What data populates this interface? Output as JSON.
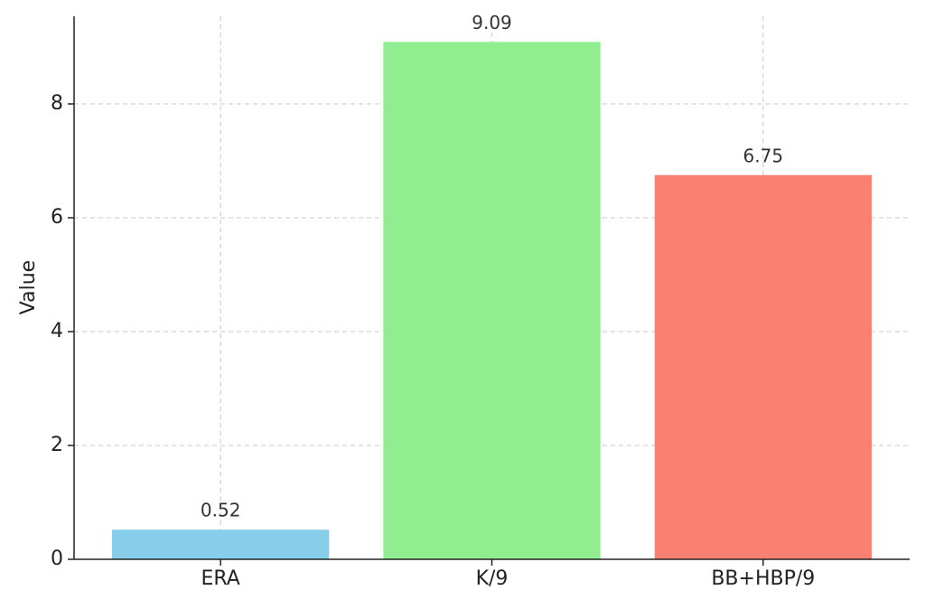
{
  "chart_data": {
    "type": "bar",
    "y_label": "Value",
    "categories": [
      "ERA",
      "K/9",
      "BB+HBP/9"
    ],
    "values": [
      0.52,
      9.09,
      6.75
    ],
    "colors": [
      "#87ceeb",
      "#90ee90",
      "#fa8072"
    ],
    "ylim": [
      0,
      9.54
    ],
    "yticks": [
      0,
      2,
      4,
      6,
      8
    ],
    "grid": true
  }
}
